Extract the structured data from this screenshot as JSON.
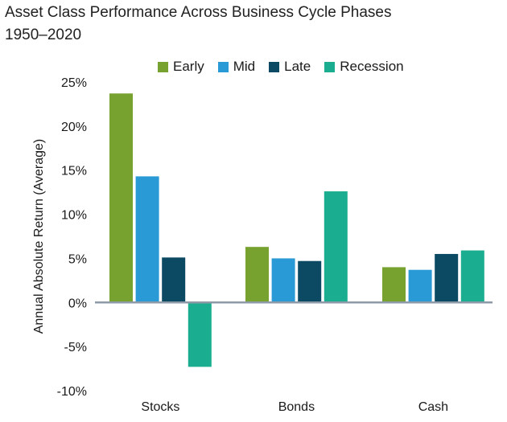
{
  "chart_data": {
    "type": "bar",
    "title": "Asset Class Performance Across Business Cycle Phases",
    "subtitle": "1950–2020",
    "xlabel": "",
    "ylabel": "Annual Absolute Return (Average)",
    "categories": [
      "Stocks",
      "Bonds",
      "Cash"
    ],
    "series": [
      {
        "name": "Early",
        "color": "#78a22f",
        "values": [
          23.7,
          6.3,
          4.0
        ]
      },
      {
        "name": "Mid",
        "color": "#2a9ad6",
        "values": [
          14.3,
          5.0,
          3.7
        ]
      },
      {
        "name": "Late",
        "color": "#0c4a63",
        "values": [
          5.1,
          4.7,
          5.5
        ]
      },
      {
        "name": "Recession",
        "color": "#1aad8f",
        "values": [
          -7.3,
          12.6,
          5.9
        ]
      }
    ],
    "ylim": [
      -10,
      25
    ],
    "yticks": [
      25,
      20,
      15,
      10,
      5,
      0,
      -5,
      -10
    ],
    "ytick_labels": [
      "25%",
      "20%",
      "15%",
      "10%",
      "5%",
      "0%",
      "-5%",
      "-10%"
    ],
    "legend_position": "top-center",
    "grid": false
  }
}
